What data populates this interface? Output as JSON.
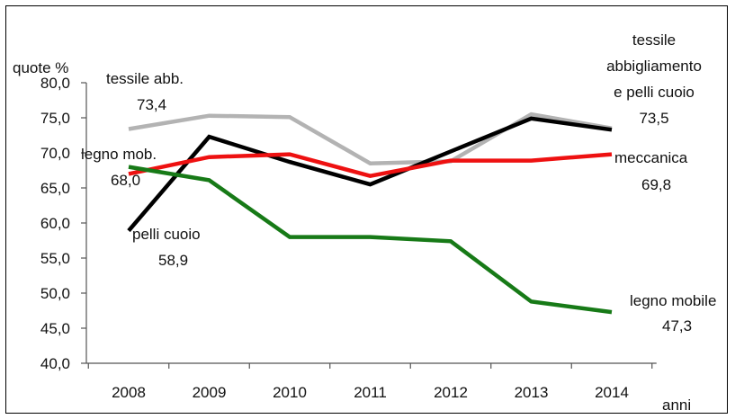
{
  "chart_data": {
    "type": "line",
    "title": "",
    "ylabel": "quote %",
    "xlabel": "anni",
    "ylim": [
      40,
      80
    ],
    "yticks": [
      "40,0",
      "45,0",
      "50,0",
      "55,0",
      "60,0",
      "65,0",
      "70,0",
      "75,0",
      "80,0"
    ],
    "x": [
      "2008",
      "2009",
      "2010",
      "2011",
      "2012",
      "2013",
      "2014"
    ],
    "grid": false,
    "series": [
      {
        "key": "tessile_abb",
        "color": "#b3b3b3",
        "values": [
          73.4,
          75.3,
          75.1,
          68.5,
          68.8,
          75.5,
          73.5
        ]
      },
      {
        "key": "pelli_cuoio",
        "color": "#000000",
        "values": [
          58.9,
          72.3,
          68.7,
          65.5,
          70.2,
          74.9,
          73.3
        ]
      },
      {
        "key": "meccanica",
        "color": "#ee1111",
        "values": [
          67.0,
          69.4,
          69.8,
          66.7,
          68.9,
          68.9,
          69.8
        ]
      },
      {
        "key": "legno_mobile",
        "color": "#177a17",
        "values": [
          68.0,
          66.1,
          58.0,
          58.0,
          57.4,
          48.8,
          47.3
        ]
      }
    ],
    "annotations": [
      {
        "key": "a_tessile_abb_name",
        "text": "tessile abb."
      },
      {
        "key": "a_tessile_abb_val",
        "text": "73,4"
      },
      {
        "key": "a_legno_mob_name",
        "text": "legno mob."
      },
      {
        "key": "a_legno_mob_val",
        "text": "68,0"
      },
      {
        "key": "a_pelli_name",
        "text": "pelli cuoio"
      },
      {
        "key": "a_pelli_val",
        "text": "58,9"
      },
      {
        "key": "a_tessile_full_1",
        "text": "tessile"
      },
      {
        "key": "a_tessile_full_2",
        "text": "abbigliamento"
      },
      {
        "key": "a_tessile_full_3",
        "text": "e pelli cuoio"
      },
      {
        "key": "a_tessile_full_val",
        "text": "73,5"
      },
      {
        "key": "a_meccanica_name",
        "text": "meccanica"
      },
      {
        "key": "a_meccanica_val",
        "text": "69,8"
      },
      {
        "key": "a_legno_mobile_name",
        "text": "legno mobile"
      },
      {
        "key": "a_legno_mobile_val",
        "text": "47,3"
      }
    ]
  }
}
